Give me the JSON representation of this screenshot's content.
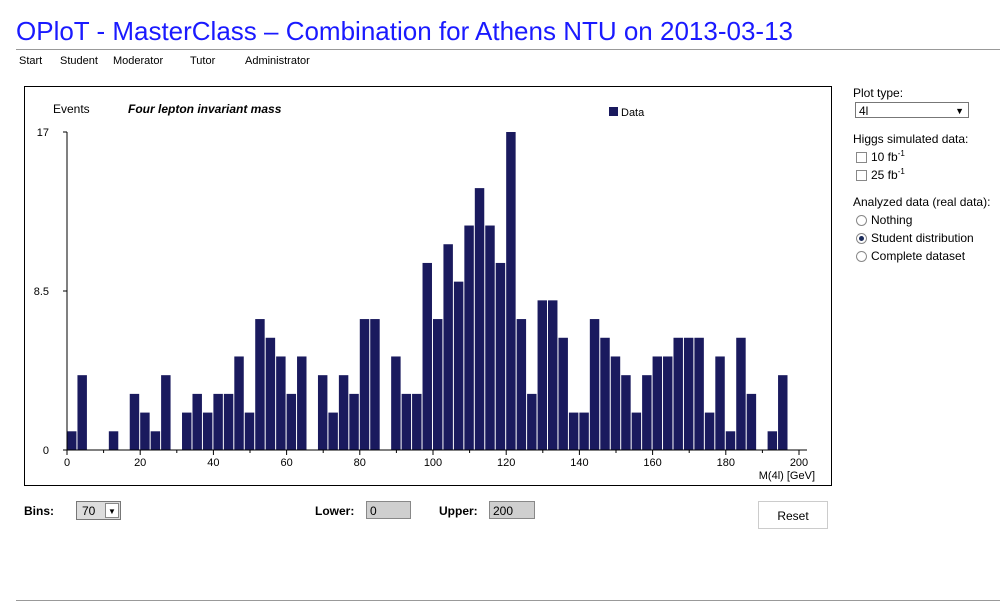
{
  "header": {
    "title": "OPloT - MasterClass – Combination for Athens NTU on 2013-03-13"
  },
  "nav": {
    "items": [
      "Start",
      "Student",
      "Moderator",
      "Tutor",
      "Administrator"
    ]
  },
  "chart_data": {
    "type": "bar",
    "title": "Four lepton invariant mass",
    "ylabel": "Events",
    "xlabel": "M(4l) [GeV]",
    "legend": "Data",
    "legend_position": "top-right",
    "xlim": [
      0,
      200
    ],
    "ylim": [
      0,
      17
    ],
    "y_ticks": [
      "0",
      "8.5",
      "17"
    ],
    "x_ticks": [
      0,
      20,
      40,
      60,
      80,
      100,
      120,
      140,
      160,
      180,
      200
    ],
    "bin_width": 2.857,
    "values": [
      1,
      4,
      0,
      0,
      1,
      0,
      3,
      2,
      1,
      4,
      0,
      2,
      3,
      2,
      3,
      3,
      5,
      2,
      7,
      6,
      5,
      3,
      5,
      0,
      4,
      2,
      4,
      3,
      7,
      7,
      0,
      5,
      3,
      3,
      10,
      7,
      11,
      9,
      12,
      14,
      12,
      10,
      17,
      7,
      3,
      8,
      8,
      6,
      2,
      2,
      7,
      6,
      5,
      4,
      2,
      4,
      5,
      5,
      6,
      6,
      6,
      2,
      5,
      1,
      6,
      3,
      0,
      1,
      4,
      0
    ],
    "bar_color": "#1a1a5e"
  },
  "sidebar": {
    "plot_type_label": "Plot type:",
    "plot_type_value": "4l",
    "higgs_label": "Higgs simulated data:",
    "higgs_options": [
      {
        "label": "10 fb",
        "sup": "-1",
        "checked": false
      },
      {
        "label": "25 fb",
        "sup": "-1",
        "checked": false
      }
    ],
    "analyzed_label": "Analyzed data (real data):",
    "analyzed_options": [
      {
        "label": "Nothing",
        "selected": false
      },
      {
        "label": "Student distribution",
        "selected": true
      },
      {
        "label": "Complete dataset",
        "selected": false
      }
    ]
  },
  "controls": {
    "bins_label": "Bins:",
    "bins_value": "70",
    "lower_label": "Lower:",
    "lower_value": "0",
    "upper_label": "Upper:",
    "upper_value": "200",
    "reset_label": "Reset"
  }
}
